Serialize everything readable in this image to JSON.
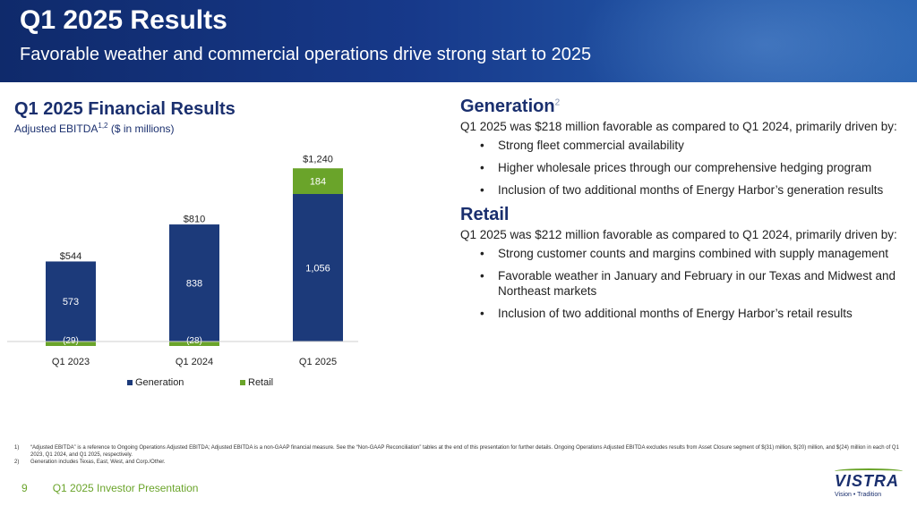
{
  "header": {
    "title": "Q1 2025 Results",
    "subtitle": "Favorable weather and commercial operations drive strong start to 2025"
  },
  "left": {
    "title": "Q1 2025 Financial Results",
    "subtitle": "Adjusted EBITDA",
    "subtitle_sup": "1,2",
    "subtitle_units": " ($ in millions)"
  },
  "colors": {
    "generation": "#1c3a7a",
    "retail": "#6aa42a",
    "header": "#17398a",
    "accent": "#1a2f6e"
  },
  "chart_data": {
    "type": "bar",
    "stacked": true,
    "categories": [
      "Q1 2023",
      "Q1 2024",
      "Q1 2025"
    ],
    "series": [
      {
        "name": "Generation",
        "values": [
          573,
          838,
          1056
        ],
        "labels": [
          "573",
          "838",
          "1,056"
        ]
      },
      {
        "name": "Retail",
        "values": [
          -29,
          -28,
          184
        ],
        "labels": [
          "(29)",
          "(28)",
          "184"
        ]
      }
    ],
    "totals": [
      "$544",
      "$810",
      "$1,240"
    ],
    "total_values": [
      544,
      810,
      1240
    ],
    "legend_position": "bottom",
    "grid": false
  },
  "generation": {
    "title": "Generation",
    "title_sup": "2",
    "text": "Q1 2025 was $218 million favorable as compared to Q1 2024, primarily driven by:",
    "bullets": [
      "Strong fleet commercial availability",
      "Higher wholesale prices through our comprehensive hedging program",
      "Inclusion of two additional months of Energy Harbor’s generation results"
    ]
  },
  "retail": {
    "title": "Retail",
    "text": "Q1 2025 was $212 million favorable as compared to Q1 2024, primarily driven by:",
    "bullets": [
      "Strong customer counts and margins combined with supply management",
      "Favorable weather in January and February in our Texas and Midwest and Northeast markets",
      "Inclusion of two additional months of Energy Harbor’s retail results"
    ]
  },
  "footnotes": [
    {
      "n": "1)",
      "text": "“Adjusted EBITDA” is a reference to Ongoing Operations Adjusted EBITDA; Adjusted EBITDA is a non-GAAP financial measure. See the “Non-GAAP Reconciliation” tables at the end of this presentation for further details. Ongoing Operations Adjusted EBITDA excludes results from Asset Closure segment of $(31) million, $(20) million, and $(24) million in each of Q1 2023, Q1 2024, and Q1 2025, respectively."
    },
    {
      "n": "2)",
      "text": "Generation includes Texas, East, West, and Corp./Other."
    }
  ],
  "footer": {
    "page": "9",
    "label": "Q1 2025 Investor Presentation"
  },
  "logo": {
    "word": "VISTRA",
    "tagline": "Vision • Tradition"
  }
}
